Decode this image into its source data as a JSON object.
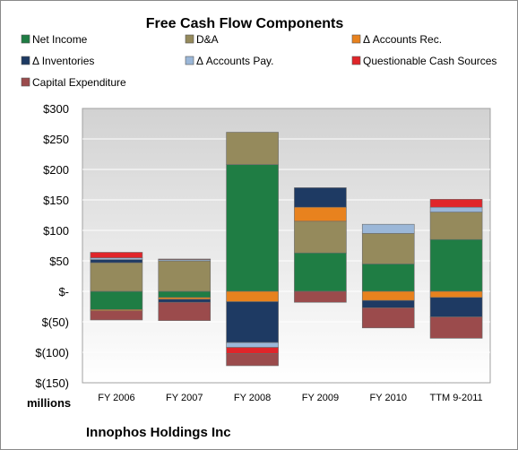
{
  "chart_data": {
    "type": "bar",
    "stacked": true,
    "title": "Free Cash Flow Components",
    "units_label": "millions",
    "company": "Innophos Holdings Inc",
    "categories": [
      "FY 2006",
      "FY 2007",
      "FY 2008",
      "FY 2009",
      "FY 2010",
      "TTM 9-2011"
    ],
    "ylim": [
      -150,
      300
    ],
    "yticks": [
      {
        "value": 300,
        "label": "$300"
      },
      {
        "value": 250,
        "label": "$250"
      },
      {
        "value": 200,
        "label": "$200"
      },
      {
        "value": 150,
        "label": "$150"
      },
      {
        "value": 100,
        "label": "$100"
      },
      {
        "value": 50,
        "label": "$50"
      },
      {
        "value": 0,
        "label": "$-"
      },
      {
        "value": -50,
        "label": "$(50)"
      },
      {
        "value": -100,
        "label": "$(100)"
      },
      {
        "value": -150,
        "label": "$(150)"
      }
    ],
    "grid": true,
    "legend_position": "top",
    "series": [
      {
        "name": "Net Income",
        "color": "#1f7d44",
        "values": [
          -30,
          -10,
          208,
          63,
          45,
          85
        ]
      },
      {
        "name": "D&A",
        "color": "#958a5c",
        "values": [
          47,
          50,
          53,
          52,
          50,
          45
        ]
      },
      {
        "name": "Δ Accounts Rec.",
        "color": "#e8821e",
        "values": [
          -2,
          -3,
          -17,
          23,
          -15,
          -10
        ]
      },
      {
        "name": "Δ Inventories",
        "color": "#1e3a63",
        "values": [
          5,
          -5,
          -67,
          32,
          -12,
          -32
        ]
      },
      {
        "name": "Δ Accounts Pay.",
        "color": "#9bb7d8",
        "values": [
          3,
          2,
          -8,
          0,
          15,
          8
        ]
      },
      {
        "name": "Questionable Cash Sources",
        "color": "#e0252a",
        "values": [
          9,
          1,
          -10,
          0,
          0,
          13
        ]
      },
      {
        "name": "Capital Expenditure",
        "color": "#9b4b4c",
        "values": [
          -15,
          -30,
          -20,
          -18,
          -33,
          -35
        ]
      }
    ]
  }
}
